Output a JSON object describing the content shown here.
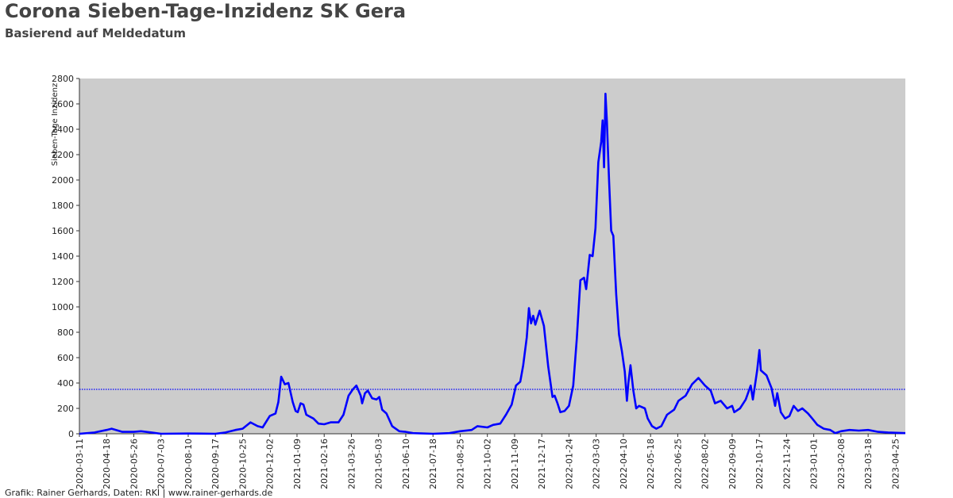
{
  "chart_data": {
    "type": "line",
    "title": "Corona Sieben-Tage-Inzidenz SK Gera",
    "subtitle": "Basierend auf Meldedatum",
    "y_label": "Sieben-Tage Inzidenz",
    "source": "Grafik: Rainer Gerhards, Daten: RKI | www.rainer-gerhards.de",
    "x": [
      "2020-03-11",
      "2020-04-01",
      "2020-04-18",
      "2020-04-25",
      "2020-05-10",
      "2020-05-26",
      "2020-06-05",
      "2020-06-20",
      "2020-07-03",
      "2020-08-10",
      "2020-09-17",
      "2020-10-01",
      "2020-10-15",
      "2020-10-25",
      "2020-11-05",
      "2020-11-15",
      "2020-11-22",
      "2020-12-02",
      "2020-12-10",
      "2020-12-14",
      "2020-12-18",
      "2020-12-23",
      "2020-12-28",
      "2021-01-03",
      "2021-01-07",
      "2021-01-10",
      "2021-01-14",
      "2021-01-18",
      "2021-01-22",
      "2021-02-01",
      "2021-02-08",
      "2021-02-16",
      "2021-02-25",
      "2021-03-08",
      "2021-03-15",
      "2021-03-22",
      "2021-03-28",
      "2021-04-02",
      "2021-04-08",
      "2021-04-10",
      "2021-04-14",
      "2021-04-18",
      "2021-04-24",
      "2021-04-30",
      "2021-05-04",
      "2021-05-08",
      "2021-05-14",
      "2021-05-22",
      "2021-06-01",
      "2021-06-10",
      "2021-06-20",
      "2021-07-18",
      "2021-08-10",
      "2021-08-25",
      "2021-09-10",
      "2021-09-18",
      "2021-10-02",
      "2021-10-10",
      "2021-10-20",
      "2021-10-28",
      "2021-11-05",
      "2021-11-11",
      "2021-11-17",
      "2021-11-21",
      "2021-11-26",
      "2021-11-29",
      "2021-12-02",
      "2021-12-05",
      "2021-12-08",
      "2021-12-14",
      "2021-12-20",
      "2021-12-26",
      "2022-01-01",
      "2022-01-04",
      "2022-01-08",
      "2022-01-12",
      "2022-01-18",
      "2022-01-24",
      "2022-01-30",
      "2022-02-04",
      "2022-02-09",
      "2022-02-14",
      "2022-02-17",
      "2022-02-22",
      "2022-02-26",
      "2022-03-02",
      "2022-03-06",
      "2022-03-10",
      "2022-03-12",
      "2022-03-14",
      "2022-03-16",
      "2022-03-18",
      "2022-03-21",
      "2022-03-24",
      "2022-03-27",
      "2022-03-31",
      "2022-04-04",
      "2022-04-08",
      "2022-04-12",
      "2022-04-15",
      "2022-04-17",
      "2022-04-20",
      "2022-04-24",
      "2022-04-28",
      "2022-05-02",
      "2022-05-10",
      "2022-05-14",
      "2022-05-20",
      "2022-05-26",
      "2022-06-02",
      "2022-06-10",
      "2022-06-20",
      "2022-06-26",
      "2022-07-06",
      "2022-07-15",
      "2022-07-24",
      "2022-08-02",
      "2022-08-10",
      "2022-08-16",
      "2022-08-24",
      "2022-09-02",
      "2022-09-09",
      "2022-09-12",
      "2022-09-20",
      "2022-09-28",
      "2022-10-05",
      "2022-10-08",
      "2022-10-14",
      "2022-10-17",
      "2022-10-19",
      "2022-10-27",
      "2022-11-03",
      "2022-11-08",
      "2022-11-11",
      "2022-11-16",
      "2022-11-22",
      "2022-11-28",
      "2022-12-04",
      "2022-12-10",
      "2022-12-16",
      "2022-12-24",
      "2022-12-30",
      "2023-01-06",
      "2023-01-15",
      "2023-01-24",
      "2023-01-31",
      "2023-02-08",
      "2023-02-20",
      "2023-03-05",
      "2023-03-18",
      "2023-04-01",
      "2023-04-15",
      "2023-05-09"
    ],
    "series": [
      {
        "name": "Sieben-Tage Inzidenz",
        "color": "#0000ff",
        "values": [
          0,
          10,
          30,
          40,
          15,
          15,
          20,
          10,
          0,
          2,
          0,
          10,
          30,
          40,
          90,
          60,
          50,
          140,
          160,
          250,
          450,
          390,
          400,
          250,
          180,
          170,
          240,
          230,
          150,
          120,
          80,
          75,
          90,
          90,
          150,
          300,
          350,
          380,
          300,
          240,
          320,
          340,
          280,
          270,
          290,
          190,
          160,
          60,
          20,
          15,
          5,
          0,
          5,
          20,
          30,
          60,
          50,
          70,
          80,
          150,
          230,
          380,
          410,
          540,
          760,
          990,
          870,
          930,
          860,
          970,
          850,
          530,
          290,
          300,
          240,
          170,
          180,
          220,
          380,
          750,
          1210,
          1230,
          1140,
          1410,
          1400,
          1620,
          2140,
          2300,
          2470,
          2100,
          2680,
          2460,
          2000,
          1600,
          1560,
          1100,
          780,
          650,
          490,
          260,
          400,
          540,
          340,
          200,
          220,
          200,
          120,
          60,
          40,
          60,
          150,
          190,
          260,
          300,
          390,
          440,
          380,
          340,
          240,
          260,
          200,
          220,
          170,
          200,
          270,
          380,
          270,
          500,
          660,
          500,
          460,
          360,
          220,
          320,
          170,
          120,
          140,
          220,
          180,
          200,
          160,
          120,
          70,
          40,
          30,
          5,
          20,
          30,
          25,
          30,
          15,
          10,
          5
        ]
      }
    ],
    "reference_line": 350,
    "reference_color": "#0000ff",
    "xlim": [
      "2020-03-11",
      "2023-05-09"
    ],
    "xticks": [
      "2020-03-11",
      "2020-04-18",
      "2020-05-26",
      "2020-07-03",
      "2020-08-10",
      "2020-09-17",
      "2020-10-25",
      "2020-12-02",
      "2021-01-09",
      "2021-02-16",
      "2021-03-26",
      "2021-05-03",
      "2021-06-10",
      "2021-07-18",
      "2021-08-25",
      "2021-10-02",
      "2021-11-09",
      "2021-12-17",
      "2022-01-24",
      "2022-03-03",
      "2022-04-10",
      "2022-05-18",
      "2022-06-25",
      "2022-08-02",
      "2022-09-09",
      "2022-10-17",
      "2022-11-24",
      "2023-01-01",
      "2023-02-08",
      "2023-03-18",
      "2023-04-25"
    ],
    "ylim": [
      0,
      2800
    ],
    "yticks": [
      0,
      200,
      400,
      600,
      800,
      1000,
      1200,
      1400,
      1600,
      1800,
      2000,
      2200,
      2400,
      2600,
      2800
    ],
    "plot_background": "#cccccc"
  }
}
